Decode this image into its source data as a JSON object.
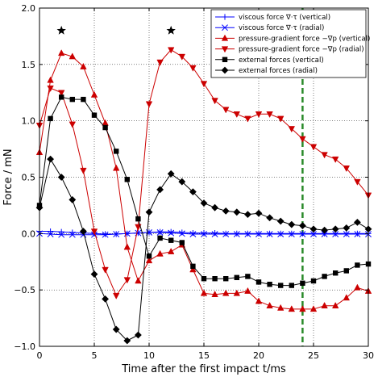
{
  "chart_data": {
    "type": "line",
    "xlabel": "Time after the first impact t/ms",
    "ylabel": "Force / mN",
    "xlim": [
      0,
      30
    ],
    "ylim": [
      -1.0,
      2.0
    ],
    "xticks": [
      0,
      5,
      10,
      15,
      20,
      25,
      30
    ],
    "yticks": [
      -1.0,
      -0.5,
      0.0,
      0.5,
      1.0,
      1.5,
      2.0
    ],
    "xtick_labels": [
      "0",
      "5",
      "10",
      "15",
      "20",
      "25",
      "30"
    ],
    "ytick_labels": [
      "−1.0",
      "−0.5",
      "0.0",
      "0.5",
      "1.0",
      "1.5",
      "2.0"
    ],
    "grid": true,
    "legend_placement": "top-right",
    "vertical_line": {
      "x": 24,
      "color": "#2a8a2a",
      "style": "dashed"
    },
    "stars": [
      {
        "x": 2,
        "y": 1.8
      },
      {
        "x": 12,
        "y": 1.8
      }
    ],
    "series": [
      {
        "name": "viscous force ∇·τ (vertical)",
        "color": "#0000ff",
        "marker": "plus",
        "x": [
          0,
          1,
          2,
          3,
          4,
          5,
          6,
          7,
          8,
          9,
          10,
          11,
          12,
          13,
          14,
          15,
          16,
          17,
          18,
          19,
          20,
          21,
          22,
          23,
          24,
          25,
          26,
          27,
          28,
          29,
          30
        ],
        "y": [
          0.02,
          0.02,
          0.015,
          0.01,
          0.005,
          0.0,
          -0.005,
          -0.005,
          0.0,
          0.005,
          0.01,
          0.015,
          0.015,
          0.01,
          0.005,
          0.005,
          0.005,
          0.0,
          0.0,
          0.0,
          0.0,
          0.0,
          0.0,
          0.0,
          0.0,
          0.0,
          0.0,
          0.0,
          0.0,
          0.0,
          0.0
        ]
      },
      {
        "name": "viscous force ∇·τ (radial)",
        "color": "#0000ff",
        "marker": "x",
        "x": [
          0,
          1,
          2,
          3,
          4,
          5,
          6,
          7,
          8,
          9,
          10,
          11,
          12,
          13,
          14,
          15,
          16,
          17,
          18,
          19,
          20,
          21,
          22,
          23,
          24,
          25,
          26,
          27,
          28,
          29,
          30
        ],
        "y": [
          0.0,
          -0.005,
          -0.01,
          -0.01,
          -0.01,
          -0.01,
          -0.01,
          -0.005,
          0.0,
          0.005,
          0.01,
          0.01,
          0.005,
          0.0,
          -0.005,
          -0.005,
          -0.005,
          -0.005,
          -0.005,
          -0.005,
          -0.005,
          -0.005,
          -0.005,
          -0.005,
          -0.005,
          -0.005,
          -0.005,
          -0.005,
          -0.005,
          -0.005,
          -0.005
        ]
      },
      {
        "name": "pressure-gradient force −∇p (vertical)",
        "color": "#cc0000",
        "marker": "triangle-up",
        "x": [
          0,
          1,
          2,
          3,
          4,
          5,
          6,
          7,
          8,
          9,
          10,
          11,
          12,
          13,
          14,
          15,
          16,
          17,
          18,
          19,
          20,
          21,
          22,
          23,
          24,
          25,
          26,
          27,
          28,
          29,
          30
        ],
        "y": [
          0.72,
          1.36,
          1.6,
          1.57,
          1.48,
          1.23,
          0.98,
          0.58,
          -0.12,
          -0.42,
          -0.24,
          -0.18,
          -0.16,
          -0.1,
          -0.32,
          -0.53,
          -0.54,
          -0.53,
          -0.53,
          -0.51,
          -0.6,
          -0.64,
          -0.66,
          -0.67,
          -0.67,
          -0.67,
          -0.64,
          -0.64,
          -0.57,
          -0.48,
          -0.51
        ]
      },
      {
        "name": "pressure-gradient force −∇p (radial)",
        "color": "#cc0000",
        "marker": "triangle-down",
        "x": [
          0,
          1,
          2,
          3,
          4,
          5,
          6,
          7,
          8,
          9,
          10,
          11,
          12,
          13,
          14,
          15,
          16,
          17,
          18,
          19,
          20,
          21,
          22,
          23,
          24,
          25,
          26,
          27,
          28,
          29,
          30
        ],
        "y": [
          0.96,
          1.29,
          1.25,
          0.97,
          0.56,
          0.02,
          -0.32,
          -0.55,
          -0.41,
          0.06,
          1.15,
          1.52,
          1.63,
          1.57,
          1.47,
          1.33,
          1.18,
          1.1,
          1.06,
          1.02,
          1.06,
          1.06,
          1.02,
          0.93,
          0.84,
          0.77,
          0.7,
          0.66,
          0.58,
          0.46,
          0.34
        ]
      },
      {
        "name": "external forces (vertical)",
        "color": "#000000",
        "marker": "square",
        "x": [
          0,
          1,
          2,
          3,
          4,
          5,
          6,
          7,
          8,
          9,
          10,
          11,
          12,
          13,
          14,
          15,
          16,
          17,
          18,
          19,
          20,
          21,
          22,
          23,
          24,
          25,
          26,
          27,
          28,
          29,
          30
        ],
        "y": [
          0.25,
          1.02,
          1.21,
          1.19,
          1.19,
          1.05,
          0.94,
          0.73,
          0.48,
          0.13,
          -0.2,
          -0.04,
          -0.06,
          -0.08,
          -0.29,
          -0.4,
          -0.4,
          -0.4,
          -0.39,
          -0.38,
          -0.43,
          -0.45,
          -0.46,
          -0.46,
          -0.44,
          -0.42,
          -0.38,
          -0.35,
          -0.33,
          -0.28,
          -0.27
        ]
      },
      {
        "name": "external forces (radial)",
        "color": "#000000",
        "marker": "diamond",
        "x": [
          0,
          1,
          2,
          3,
          4,
          5,
          6,
          7,
          8,
          9,
          10,
          11,
          12,
          13,
          14,
          15,
          16,
          17,
          18,
          19,
          20,
          21,
          22,
          23,
          24,
          25,
          26,
          27,
          28,
          29,
          30
        ],
        "y": [
          0.23,
          0.66,
          0.5,
          0.3,
          0.02,
          -0.36,
          -0.58,
          -0.85,
          -0.95,
          -0.9,
          0.19,
          0.39,
          0.53,
          0.46,
          0.37,
          0.27,
          0.23,
          0.2,
          0.19,
          0.17,
          0.18,
          0.14,
          0.11,
          0.08,
          0.07,
          0.04,
          0.03,
          0.04,
          0.05,
          0.1,
          0.04
        ]
      }
    ]
  }
}
